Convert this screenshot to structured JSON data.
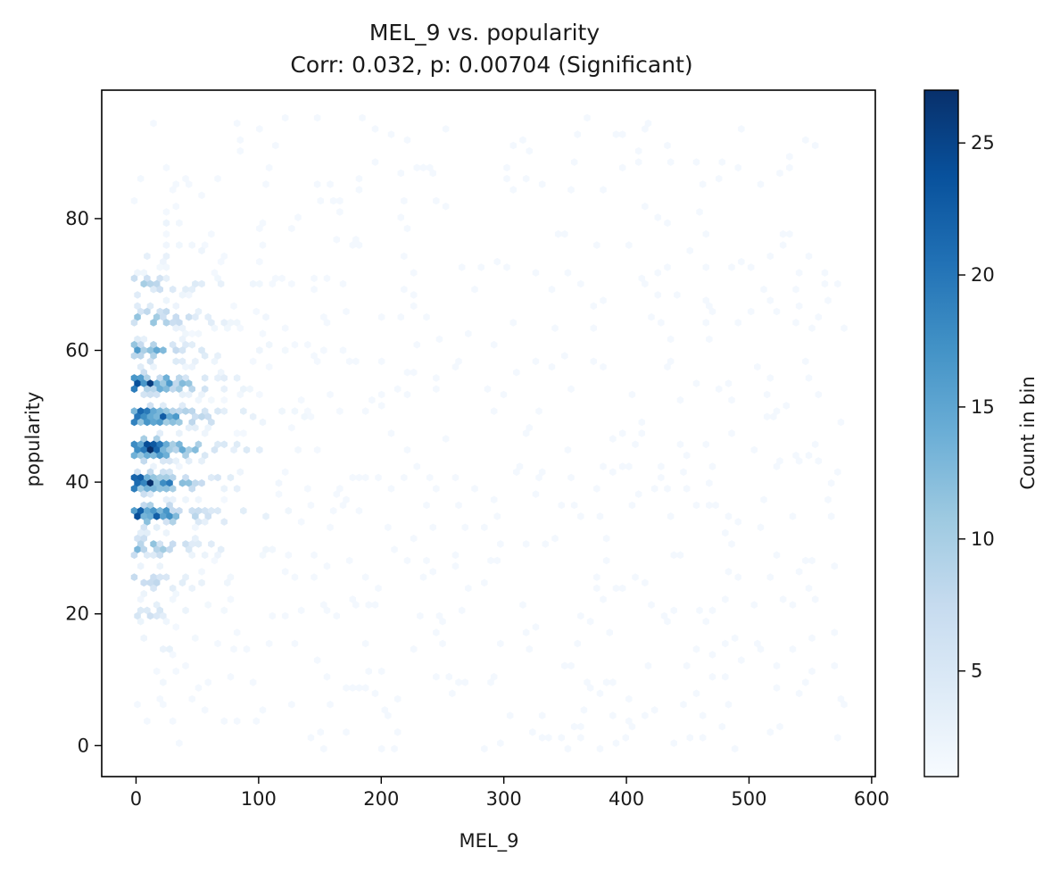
{
  "chart_data": {
    "type": "hexbin",
    "title": "MEL_9 vs. popularity",
    "subtitle": "Corr: 0.032, p: 0.00704 (Significant)",
    "xlabel": "MEL_9",
    "ylabel": "popularity",
    "xlim": [
      -28,
      603
    ],
    "ylim": [
      -4.7,
      99.5
    ],
    "xticks": [
      0,
      100,
      200,
      300,
      400,
      500,
      600
    ],
    "yticks": [
      0,
      20,
      40,
      60,
      80
    ],
    "colorbar": {
      "label": "Count in bin",
      "range": [
        1,
        27
      ],
      "ticks": [
        5,
        10,
        15,
        20,
        25
      ],
      "colormap": "Blues"
    },
    "density_profile": {
      "x_scale": 38,
      "x_min": 0,
      "x_max": 580,
      "y_rows": [
        35,
        40,
        45,
        50,
        55,
        60,
        65,
        70,
        30,
        25,
        20,
        15,
        75,
        80,
        85,
        90,
        10,
        5,
        0
      ]
    },
    "grid": false,
    "legend": "none"
  }
}
